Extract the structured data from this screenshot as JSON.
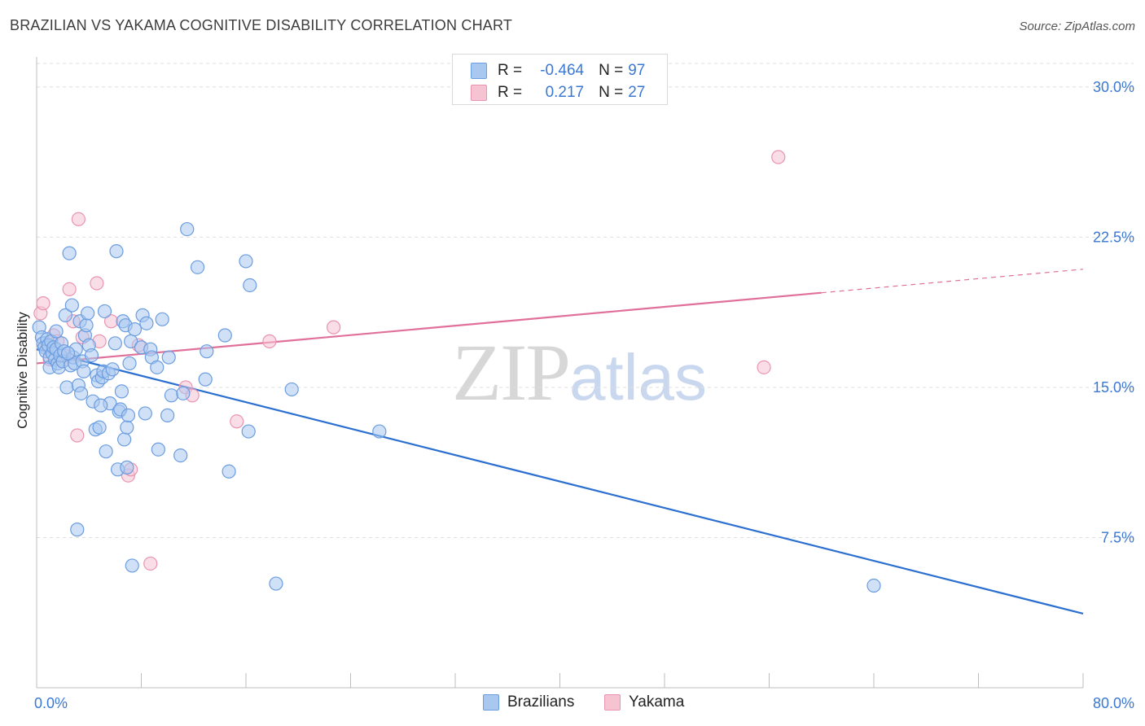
{
  "header": {
    "title": "BRAZILIAN VS YAKAMA COGNITIVE DISABILITY CORRELATION CHART",
    "source": "Source: ZipAtlas.com"
  },
  "watermark": {
    "zip": "ZIP",
    "atlas": "atlas"
  },
  "legend_top": {
    "rows": [
      {
        "r_label": "R =",
        "r_value": "-0.464",
        "n_label": "N =",
        "n_value": "97"
      },
      {
        "r_label": "R =",
        "r_value": "0.217",
        "n_label": "N =",
        "n_value": "27"
      }
    ]
  },
  "legend_bottom": {
    "brazilians": "Brazilians",
    "yakama": "Yakama"
  },
  "colors": {
    "blue_fill": "#a9c8f0",
    "blue_stroke": "#6b9de0",
    "blue_line": "#2b6fd1",
    "pink_fill": "#f6c3d3",
    "pink_stroke": "#e994b1",
    "pink_line": "#e0709a",
    "grid": "#dedede",
    "tick_text": "#3a78d4"
  },
  "chart_data": {
    "type": "scatter",
    "title": "BRAZILIAN VS YAKAMA COGNITIVE DISABILITY CORRELATION CHART",
    "xlabel": "",
    "ylabel": "Cognitive Disability",
    "xlim": [
      0,
      80
    ],
    "ylim": [
      0,
      31.5
    ],
    "x_tick_labels": [
      "0.0%",
      "80.0%"
    ],
    "y_ticks": [
      7.5,
      15.0,
      22.5,
      30.0
    ],
    "y_tick_labels": [
      "7.5%",
      "15.0%",
      "22.5%",
      "30.0%"
    ],
    "grid": "horizontal-dashed",
    "legend_position": "top-center",
    "series": [
      {
        "name": "Brazilians",
        "points": [
          [
            0.2,
            18.0
          ],
          [
            0.4,
            17.5
          ],
          [
            0.5,
            17.2
          ],
          [
            0.6,
            17.0
          ],
          [
            0.7,
            16.8
          ],
          [
            0.8,
            17.4
          ],
          [
            0.9,
            17.1
          ],
          [
            1.0,
            16.5
          ],
          [
            1.0,
            16.0
          ],
          [
            1.1,
            17.3
          ],
          [
            1.2,
            16.7
          ],
          [
            1.3,
            17.0
          ],
          [
            1.4,
            16.4
          ],
          [
            1.5,
            16.9
          ],
          [
            1.6,
            16.2
          ],
          [
            1.7,
            16.0
          ],
          [
            1.8,
            16.6
          ],
          [
            1.9,
            17.2
          ],
          [
            2.0,
            16.3
          ],
          [
            2.1,
            16.8
          ],
          [
            2.2,
            18.6
          ],
          [
            2.3,
            15.0
          ],
          [
            2.5,
            21.7
          ],
          [
            2.6,
            16.1
          ],
          [
            2.7,
            19.1
          ],
          [
            2.8,
            16.5
          ],
          [
            2.9,
            16.2
          ],
          [
            3.0,
            16.9
          ],
          [
            3.2,
            15.1
          ],
          [
            3.3,
            18.3
          ],
          [
            3.4,
            14.7
          ],
          [
            3.5,
            16.3
          ],
          [
            3.6,
            15.8
          ],
          [
            3.7,
            17.6
          ],
          [
            3.8,
            18.1
          ],
          [
            3.9,
            18.7
          ],
          [
            4.0,
            17.1
          ],
          [
            4.2,
            16.6
          ],
          [
            4.3,
            14.3
          ],
          [
            4.5,
            12.9
          ],
          [
            4.6,
            15.6
          ],
          [
            4.7,
            15.3
          ],
          [
            4.8,
            13.0
          ],
          [
            5.0,
            15.5
          ],
          [
            5.1,
            15.8
          ],
          [
            5.2,
            18.8
          ],
          [
            5.3,
            11.8
          ],
          [
            5.5,
            15.7
          ],
          [
            5.6,
            14.2
          ],
          [
            5.8,
            15.9
          ],
          [
            6.0,
            17.2
          ],
          [
            6.1,
            21.8
          ],
          [
            6.2,
            10.9
          ],
          [
            6.3,
            13.8
          ],
          [
            6.4,
            13.9
          ],
          [
            6.5,
            14.8
          ],
          [
            6.6,
            18.3
          ],
          [
            6.7,
            12.4
          ],
          [
            6.8,
            18.1
          ],
          [
            6.9,
            13.0
          ],
          [
            7.0,
            13.6
          ],
          [
            7.1,
            16.2
          ],
          [
            7.2,
            17.3
          ],
          [
            7.5,
            17.9
          ],
          [
            8.0,
            17.0
          ],
          [
            8.1,
            18.6
          ],
          [
            8.3,
            13.7
          ],
          [
            8.4,
            18.2
          ],
          [
            8.7,
            16.9
          ],
          [
            8.8,
            16.5
          ],
          [
            9.2,
            16.0
          ],
          [
            9.3,
            11.9
          ],
          [
            9.6,
            18.4
          ],
          [
            10.0,
            13.6
          ],
          [
            10.1,
            16.5
          ],
          [
            10.3,
            14.6
          ],
          [
            11.0,
            11.6
          ],
          [
            11.2,
            14.7
          ],
          [
            11.5,
            22.9
          ],
          [
            12.3,
            21.0
          ],
          [
            12.9,
            15.4
          ],
          [
            13.0,
            16.8
          ],
          [
            14.4,
            17.6
          ],
          [
            14.7,
            10.8
          ],
          [
            16.0,
            21.3
          ],
          [
            16.2,
            12.8
          ],
          [
            16.3,
            20.1
          ],
          [
            19.5,
            14.9
          ],
          [
            26.2,
            12.8
          ],
          [
            64.0,
            5.1
          ],
          [
            3.1,
            7.9
          ],
          [
            7.3,
            6.1
          ],
          [
            18.3,
            5.2
          ],
          [
            4.9,
            14.1
          ],
          [
            1.5,
            17.8
          ],
          [
            2.4,
            16.7
          ],
          [
            6.9,
            11.0
          ]
        ],
        "trend": {
          "x": [
            0,
            80
          ],
          "y": [
            16.9,
            3.7
          ]
        }
      },
      {
        "name": "Yakama",
        "points": [
          [
            0.3,
            18.7
          ],
          [
            0.5,
            19.2
          ],
          [
            0.8,
            17.1
          ],
          [
            1.0,
            16.4
          ],
          [
            1.3,
            17.6
          ],
          [
            1.6,
            17.3
          ],
          [
            2.0,
            16.3
          ],
          [
            2.1,
            16.6
          ],
          [
            2.5,
            19.9
          ],
          [
            2.8,
            18.3
          ],
          [
            3.1,
            12.6
          ],
          [
            3.2,
            23.4
          ],
          [
            3.5,
            17.5
          ],
          [
            4.6,
            20.2
          ],
          [
            4.8,
            17.3
          ],
          [
            5.7,
            18.3
          ],
          [
            7.0,
            10.6
          ],
          [
            7.2,
            10.9
          ],
          [
            7.8,
            17.1
          ],
          [
            8.7,
            6.2
          ],
          [
            11.4,
            15.0
          ],
          [
            11.9,
            14.6
          ],
          [
            15.3,
            13.3
          ],
          [
            17.8,
            17.3
          ],
          [
            22.7,
            18.0
          ],
          [
            55.6,
            16.0
          ],
          [
            56.7,
            26.5
          ]
        ],
        "trend": {
          "x": [
            0,
            80
          ],
          "y": [
            16.2,
            20.9
          ],
          "solid_until_x": 60
        }
      }
    ]
  }
}
